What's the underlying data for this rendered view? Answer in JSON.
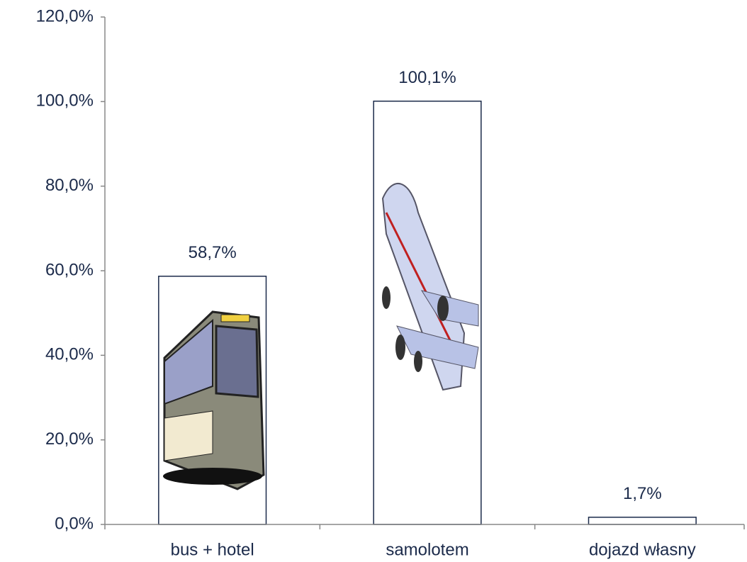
{
  "chart_data": {
    "type": "bar",
    "categories": [
      "bus + hotel",
      "samolotem",
      "dojazd własny"
    ],
    "values": [
      58.7,
      100.1,
      1.7
    ],
    "value_labels": [
      "58,7%",
      "100,1%",
      "1,7%"
    ],
    "color": "#ffffff",
    "ylim": [
      0,
      120
    ],
    "yticks": [
      {
        "value": 0,
        "label": "0,0%"
      },
      {
        "value": 20,
        "label": "20,0%"
      },
      {
        "value": 40,
        "label": "40,0%"
      },
      {
        "value": 60,
        "label": "60,0%"
      },
      {
        "value": 80,
        "label": "80,0%"
      },
      {
        "value": 100,
        "label": "100,0%"
      },
      {
        "value": 120,
        "label": "120,0%"
      }
    ],
    "grid": false
  }
}
